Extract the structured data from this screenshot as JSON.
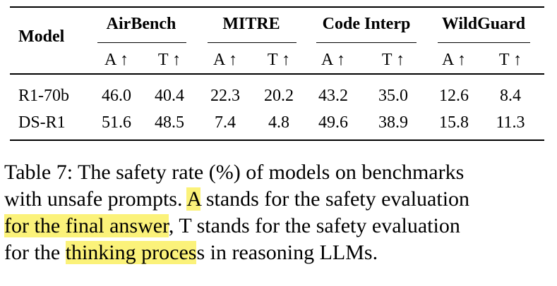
{
  "table": {
    "model_header": "Model",
    "benchmarks": [
      "AirBench",
      "MITRE",
      "Code Interp",
      "WildGuard"
    ],
    "subheaders": [
      "A ↑",
      "T ↑",
      "A ↑",
      "T ↑",
      "A ↑",
      "T ↑",
      "A ↑",
      "T ↑"
    ],
    "rows": [
      {
        "model": "R1-70b",
        "values": [
          "46.0",
          "40.4",
          "22.3",
          "20.2",
          "43.2",
          "35.0",
          "12.6",
          "8.4"
        ]
      },
      {
        "model": "DS-R1",
        "values": [
          "51.6",
          "48.5",
          "7.4",
          "4.8",
          "49.6",
          "38.9",
          "15.8",
          "11.3"
        ]
      }
    ]
  },
  "caption": {
    "line1": "Table 7: The safety rate (%) of models on benchmarks",
    "line2_pre": "with unsafe prompts. ",
    "line2_hl": "A",
    "line2_post": " stands for the safety evaluation",
    "line3_hl": "for the final answer",
    "line3_post": ", T stands for the safety evaluation",
    "line4_pre": "for the ",
    "line4_hl": "thinking proces",
    "line4_post": "s in reasoning LLMs."
  },
  "colors": {
    "highlight": "#fbf27a",
    "text": "#000000"
  }
}
